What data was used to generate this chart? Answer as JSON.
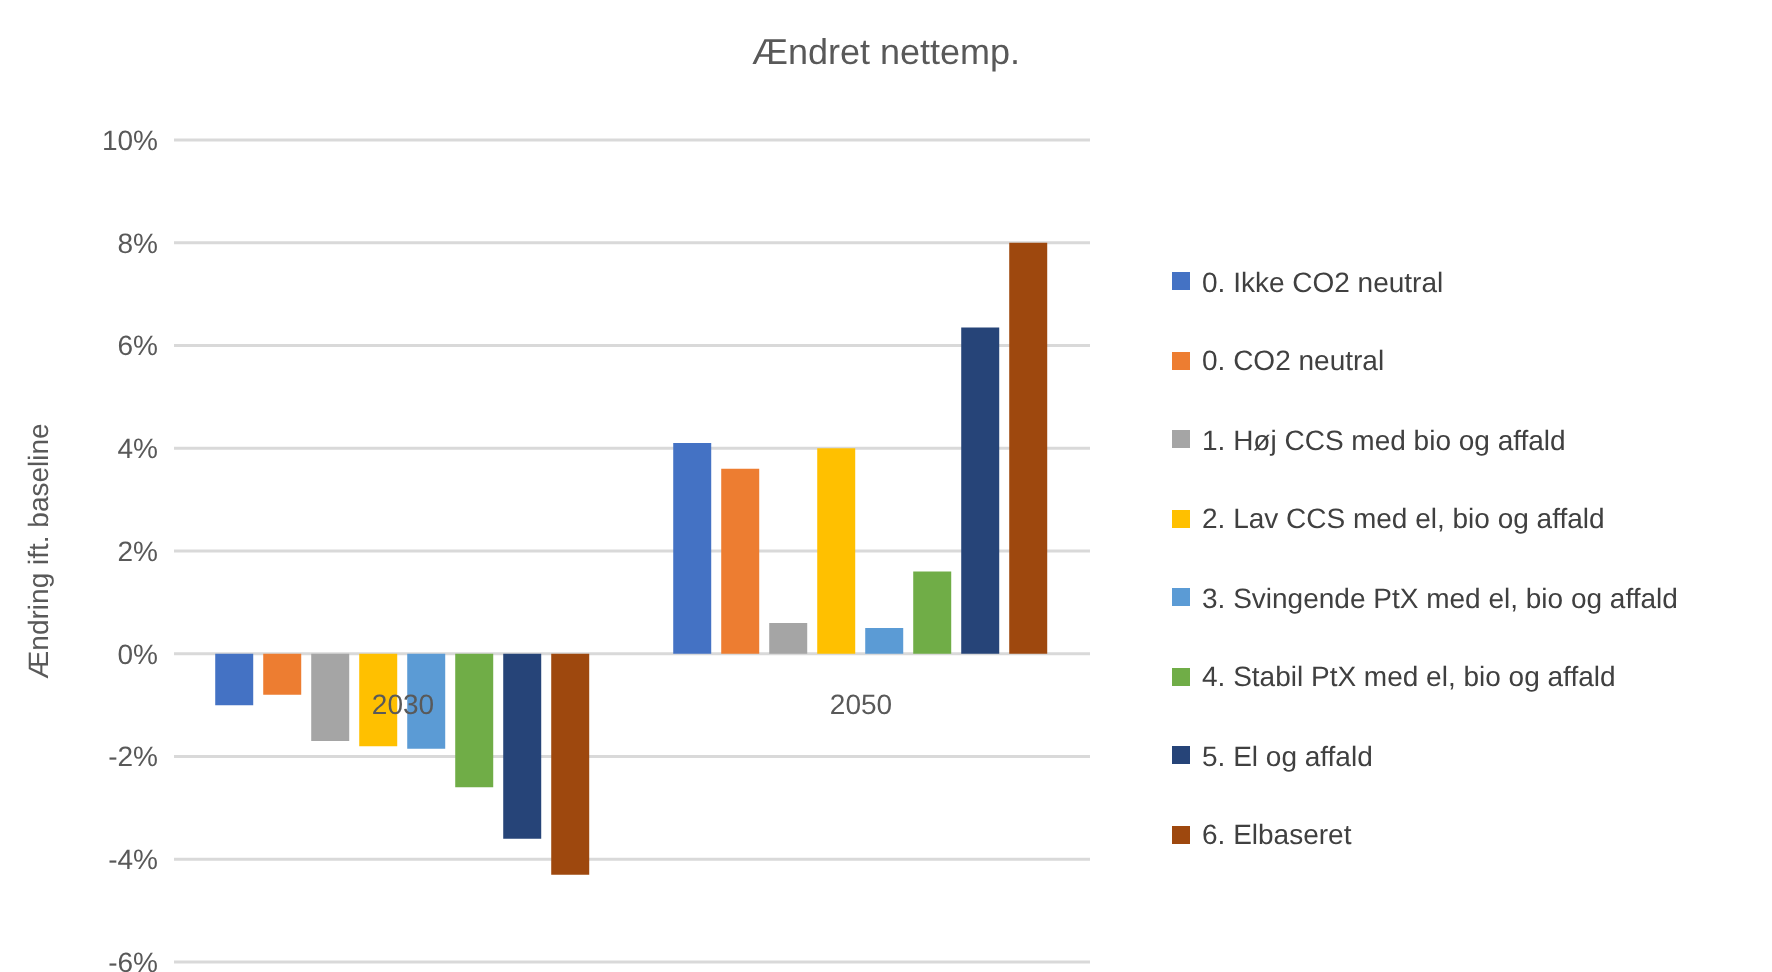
{
  "chart_data": {
    "type": "bar",
    "title": "Ændret nettemp.",
    "ylabel": "Ændring ift. baseline",
    "categories": [
      "2030",
      "2050"
    ],
    "series": [
      {
        "name": "0. Ikke CO2 neutral",
        "color": "#4472c4",
        "values": [
          -1.0,
          4.1
        ]
      },
      {
        "name": "0. CO2 neutral",
        "color": "#ed7d31",
        "values": [
          -0.8,
          3.6
        ]
      },
      {
        "name": "1. Høj CCS med bio og affald",
        "color": "#a5a5a5",
        "values": [
          -1.7,
          0.6
        ]
      },
      {
        "name": "2. Lav CCS med el, bio og affald",
        "color": "#ffc000",
        "values": [
          -1.8,
          4.0
        ]
      },
      {
        "name": "3. Svingende PtX med el, bio og affald",
        "color": "#5b9bd5",
        "values": [
          -1.85,
          0.5
        ]
      },
      {
        "name": "4. Stabil PtX med el, bio og affald",
        "color": "#70ad47",
        "values": [
          -2.6,
          1.6
        ]
      },
      {
        "name": "5. El og affald",
        "color": "#264478",
        "values": [
          -3.6,
          6.35
        ]
      },
      {
        "name": "6. Elbaseret",
        "color": "#9e480e",
        "values": [
          -4.3,
          8.0
        ]
      }
    ],
    "ylim": [
      -6,
      10
    ],
    "yticks": [
      {
        "value": -6,
        "label": "-6%"
      },
      {
        "value": -4,
        "label": "-4%"
      },
      {
        "value": -2,
        "label": "-2%"
      },
      {
        "value": 0,
        "label": "0%"
      },
      {
        "value": 2,
        "label": "2%"
      },
      {
        "value": 4,
        "label": "4%"
      },
      {
        "value": 6,
        "label": "6%"
      },
      {
        "value": 8,
        "label": "8%"
      },
      {
        "value": 10,
        "label": "10%"
      }
    ],
    "grid": "y",
    "legend": "right"
  }
}
